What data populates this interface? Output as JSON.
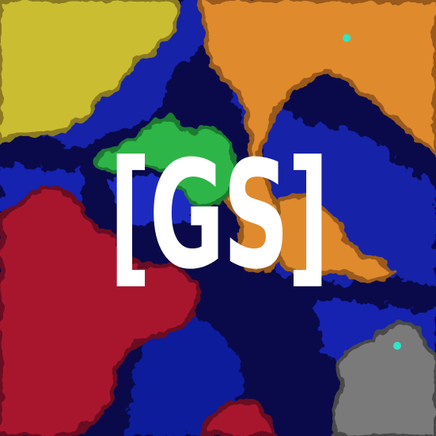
{
  "logo": {
    "text": "[GS]",
    "color": "#ffffff"
  },
  "background": {
    "base_color": "#0a0a4a",
    "water_color": "#0d1d9a",
    "regions": [
      {
        "name": "yellow-region",
        "color": "#cbbd32"
      },
      {
        "name": "orange-region",
        "color": "#e08a2e"
      },
      {
        "name": "green-region",
        "color": "#2fb547"
      },
      {
        "name": "red-region",
        "color": "#a8192e"
      },
      {
        "name": "gray-region",
        "color": "#7a7a7a"
      }
    ]
  }
}
